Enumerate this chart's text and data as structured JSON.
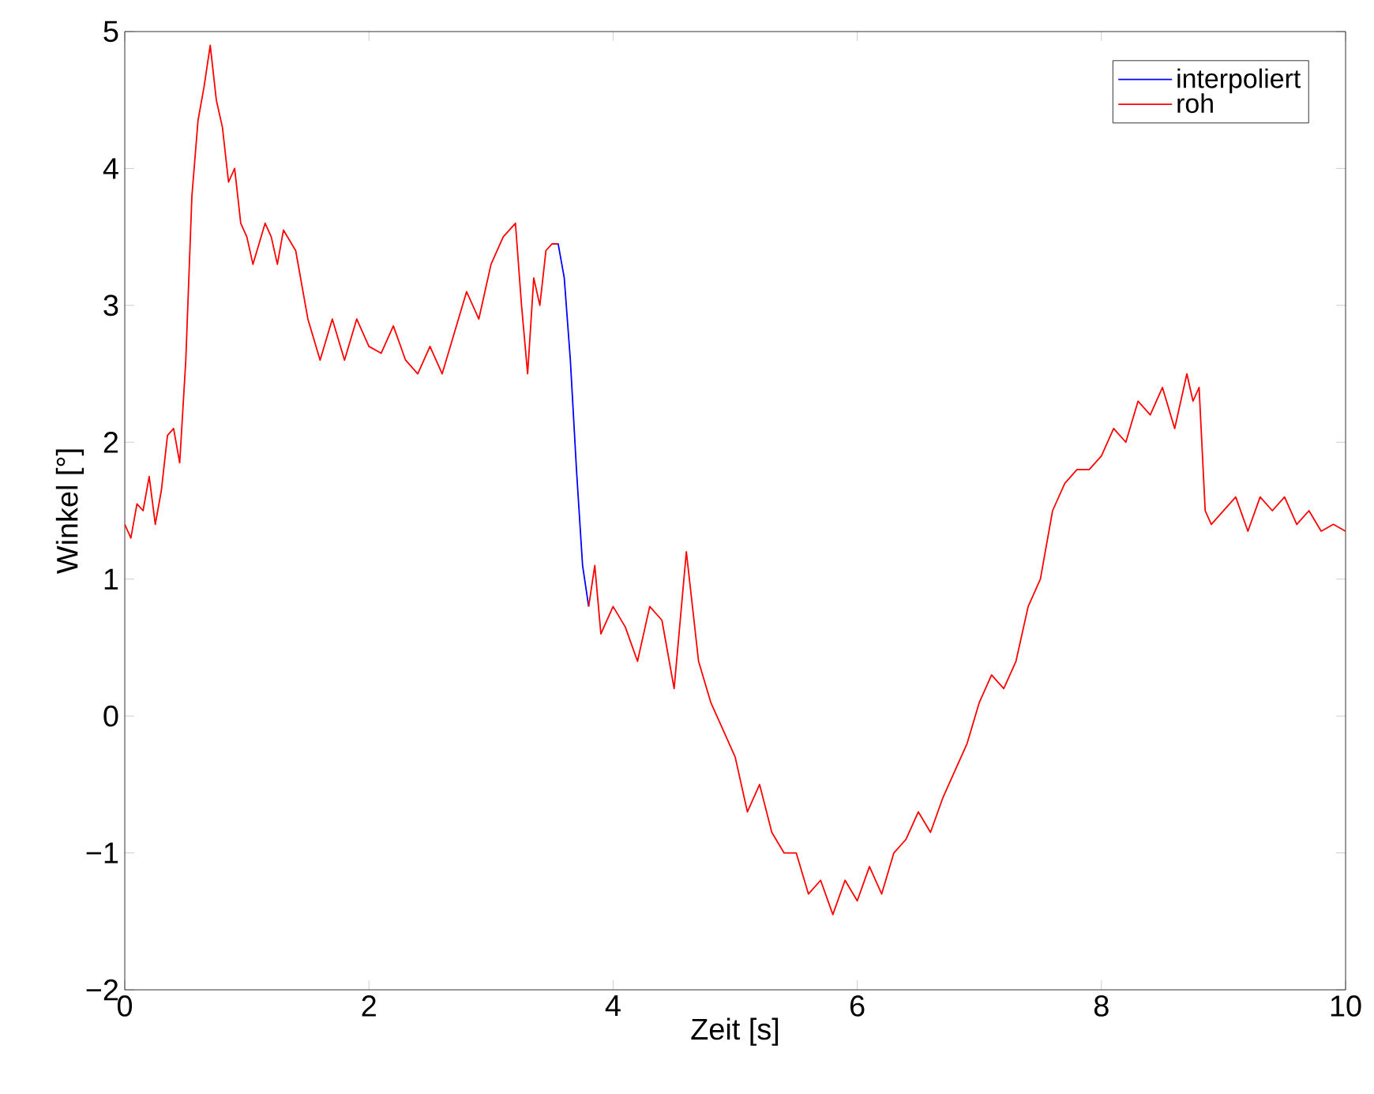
{
  "chart_data": {
    "type": "line",
    "xlabel": "Zeit [s]",
    "ylabel": "Winkel [°]",
    "xlim": [
      0,
      10
    ],
    "ylim": [
      -2,
      5
    ],
    "xticks": [
      0,
      2,
      4,
      6,
      8,
      10
    ],
    "yticks": [
      {
        "value": -2,
        "label": "−2"
      },
      {
        "value": -1,
        "label": "−1"
      },
      0,
      1,
      2,
      3,
      4,
      5
    ],
    "grid": false,
    "legend": "top right",
    "line_style": "solid",
    "x": [
      0,
      0.05,
      0.1,
      0.15,
      0.2,
      0.25,
      0.3,
      0.35,
      0.4,
      0.45,
      0.5,
      0.55,
      0.6,
      0.65,
      0.7,
      0.75,
      0.8,
      0.85,
      0.9,
      0.95,
      1.0,
      1.05,
      1.1,
      1.15,
      1.2,
      1.25,
      1.3,
      1.4,
      1.5,
      1.6,
      1.7,
      1.8,
      1.9,
      2.0,
      2.1,
      2.2,
      2.3,
      2.4,
      2.5,
      2.6,
      2.7,
      2.8,
      2.9,
      3.0,
      3.1,
      3.2,
      3.25,
      3.3,
      3.35,
      3.4,
      3.45,
      3.5,
      3.55,
      3.6,
      3.65,
      3.7,
      3.75,
      3.8,
      3.85,
      3.9,
      4.0,
      4.1,
      4.2,
      4.3,
      4.4,
      4.5,
      4.6,
      4.65,
      4.7,
      4.8,
      4.9,
      5.0,
      5.1,
      5.2,
      5.3,
      5.4,
      5.5,
      5.6,
      5.7,
      5.8,
      5.9,
      6.0,
      6.1,
      6.2,
      6.3,
      6.4,
      6.5,
      6.6,
      6.7,
      6.8,
      6.9,
      7.0,
      7.1,
      7.2,
      7.3,
      7.4,
      7.5,
      7.6,
      7.7,
      7.8,
      7.9,
      8.0,
      8.1,
      8.2,
      8.3,
      8.4,
      8.5,
      8.6,
      8.7,
      8.75,
      8.8,
      8.85,
      8.9,
      9.0,
      9.1,
      9.2,
      9.3,
      9.4,
      9.5,
      9.6,
      9.7,
      9.8,
      9.9,
      10
    ],
    "series": [
      {
        "name": "interpoliert",
        "color": "#0000ff",
        "x": [
          3.5,
          3.55,
          3.6,
          3.65,
          3.7,
          3.75,
          3.8
        ],
        "values": [
          3.45,
          3.45,
          3.2,
          2.6,
          1.8,
          1.1,
          0.8
        ]
      },
      {
        "name": "roh",
        "color": "#ff0000",
        "values": [
          1.4,
          1.3,
          1.55,
          1.5,
          1.75,
          1.4,
          1.65,
          2.05,
          2.1,
          1.85,
          2.6,
          3.8,
          4.35,
          4.6,
          4.9,
          4.5,
          4.3,
          3.9,
          4.0,
          3.6,
          3.5,
          3.3,
          3.45,
          3.6,
          3.5,
          3.3,
          3.55,
          3.4,
          2.9,
          2.6,
          2.9,
          2.6,
          2.9,
          2.7,
          2.65,
          2.85,
          2.6,
          2.5,
          2.7,
          2.5,
          2.8,
          3.1,
          2.9,
          3.3,
          3.5,
          3.6,
          3.0,
          2.5,
          3.2,
          3.0,
          3.4,
          3.45,
          3.45,
          null,
          null,
          null,
          null,
          0.8,
          1.1,
          0.6,
          0.8,
          0.65,
          0.4,
          0.8,
          0.7,
          0.2,
          1.2,
          0.8,
          0.4,
          0.1,
          -0.1,
          -0.3,
          -0.7,
          -0.5,
          -0.85,
          -1.0,
          -1.0,
          -1.3,
          -1.2,
          -1.45,
          -1.2,
          -1.35,
          -1.1,
          -1.3,
          -1.0,
          -0.9,
          -0.7,
          -0.85,
          -0.6,
          -0.4,
          -0.2,
          0.1,
          0.3,
          0.2,
          0.4,
          0.8,
          1.0,
          1.5,
          1.7,
          1.8,
          1.8,
          1.9,
          2.1,
          2.0,
          2.3,
          2.2,
          2.4,
          2.1,
          2.5,
          2.3,
          2.4,
          1.5,
          1.4,
          1.5,
          1.6,
          1.35,
          1.6,
          1.5,
          1.6,
          1.4,
          1.5,
          1.35,
          1.4,
          1.35
        ]
      }
    ]
  }
}
